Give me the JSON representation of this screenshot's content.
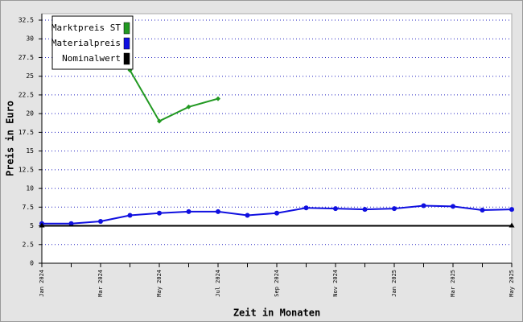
{
  "chart_data": {
    "type": "line",
    "y_label": "Preis in Euro",
    "x_label": "Zeit in Monaten",
    "categories": [
      "Jan 2024",
      null,
      "Mar 2024",
      null,
      "May 2024",
      null,
      "Jul 2024",
      null,
      "Sep 2024",
      null,
      "Nov 2024",
      null,
      "Jan 2025",
      null,
      "Mar 2025",
      null,
      "May 2025"
    ],
    "series": [
      {
        "name": "Marktpreis ST",
        "color": "#229922",
        "marker": "diamond",
        "values": [
          null,
          null,
          null,
          25.8,
          19.0,
          20.9,
          22.0,
          null,
          null,
          null,
          null,
          null,
          null,
          null,
          null,
          null,
          null
        ]
      },
      {
        "name": "Materialpreis",
        "color": "#1010e0",
        "marker": "circle",
        "values": [
          5.3,
          5.3,
          5.6,
          6.4,
          6.7,
          6.9,
          6.9,
          6.4,
          6.7,
          7.4,
          7.3,
          7.2,
          7.3,
          7.7,
          7.6,
          7.1,
          7.2
        ]
      },
      {
        "name": "Nominalwert",
        "color": "#000000",
        "marker": "triangle",
        "values": [
          5,
          5,
          5,
          5,
          5,
          5,
          5,
          5,
          5,
          5,
          5,
          5,
          5,
          5,
          5,
          5,
          5
        ]
      }
    ],
    "ylim": [
      0,
      32.5
    ],
    "yticks": [
      0,
      2.5,
      5,
      7.5,
      10,
      12.5,
      15,
      17.5,
      20,
      22.5,
      25,
      27.5,
      30,
      32.5
    ],
    "grid": true,
    "grid_color": "#2020c0",
    "legend": "upper left"
  }
}
